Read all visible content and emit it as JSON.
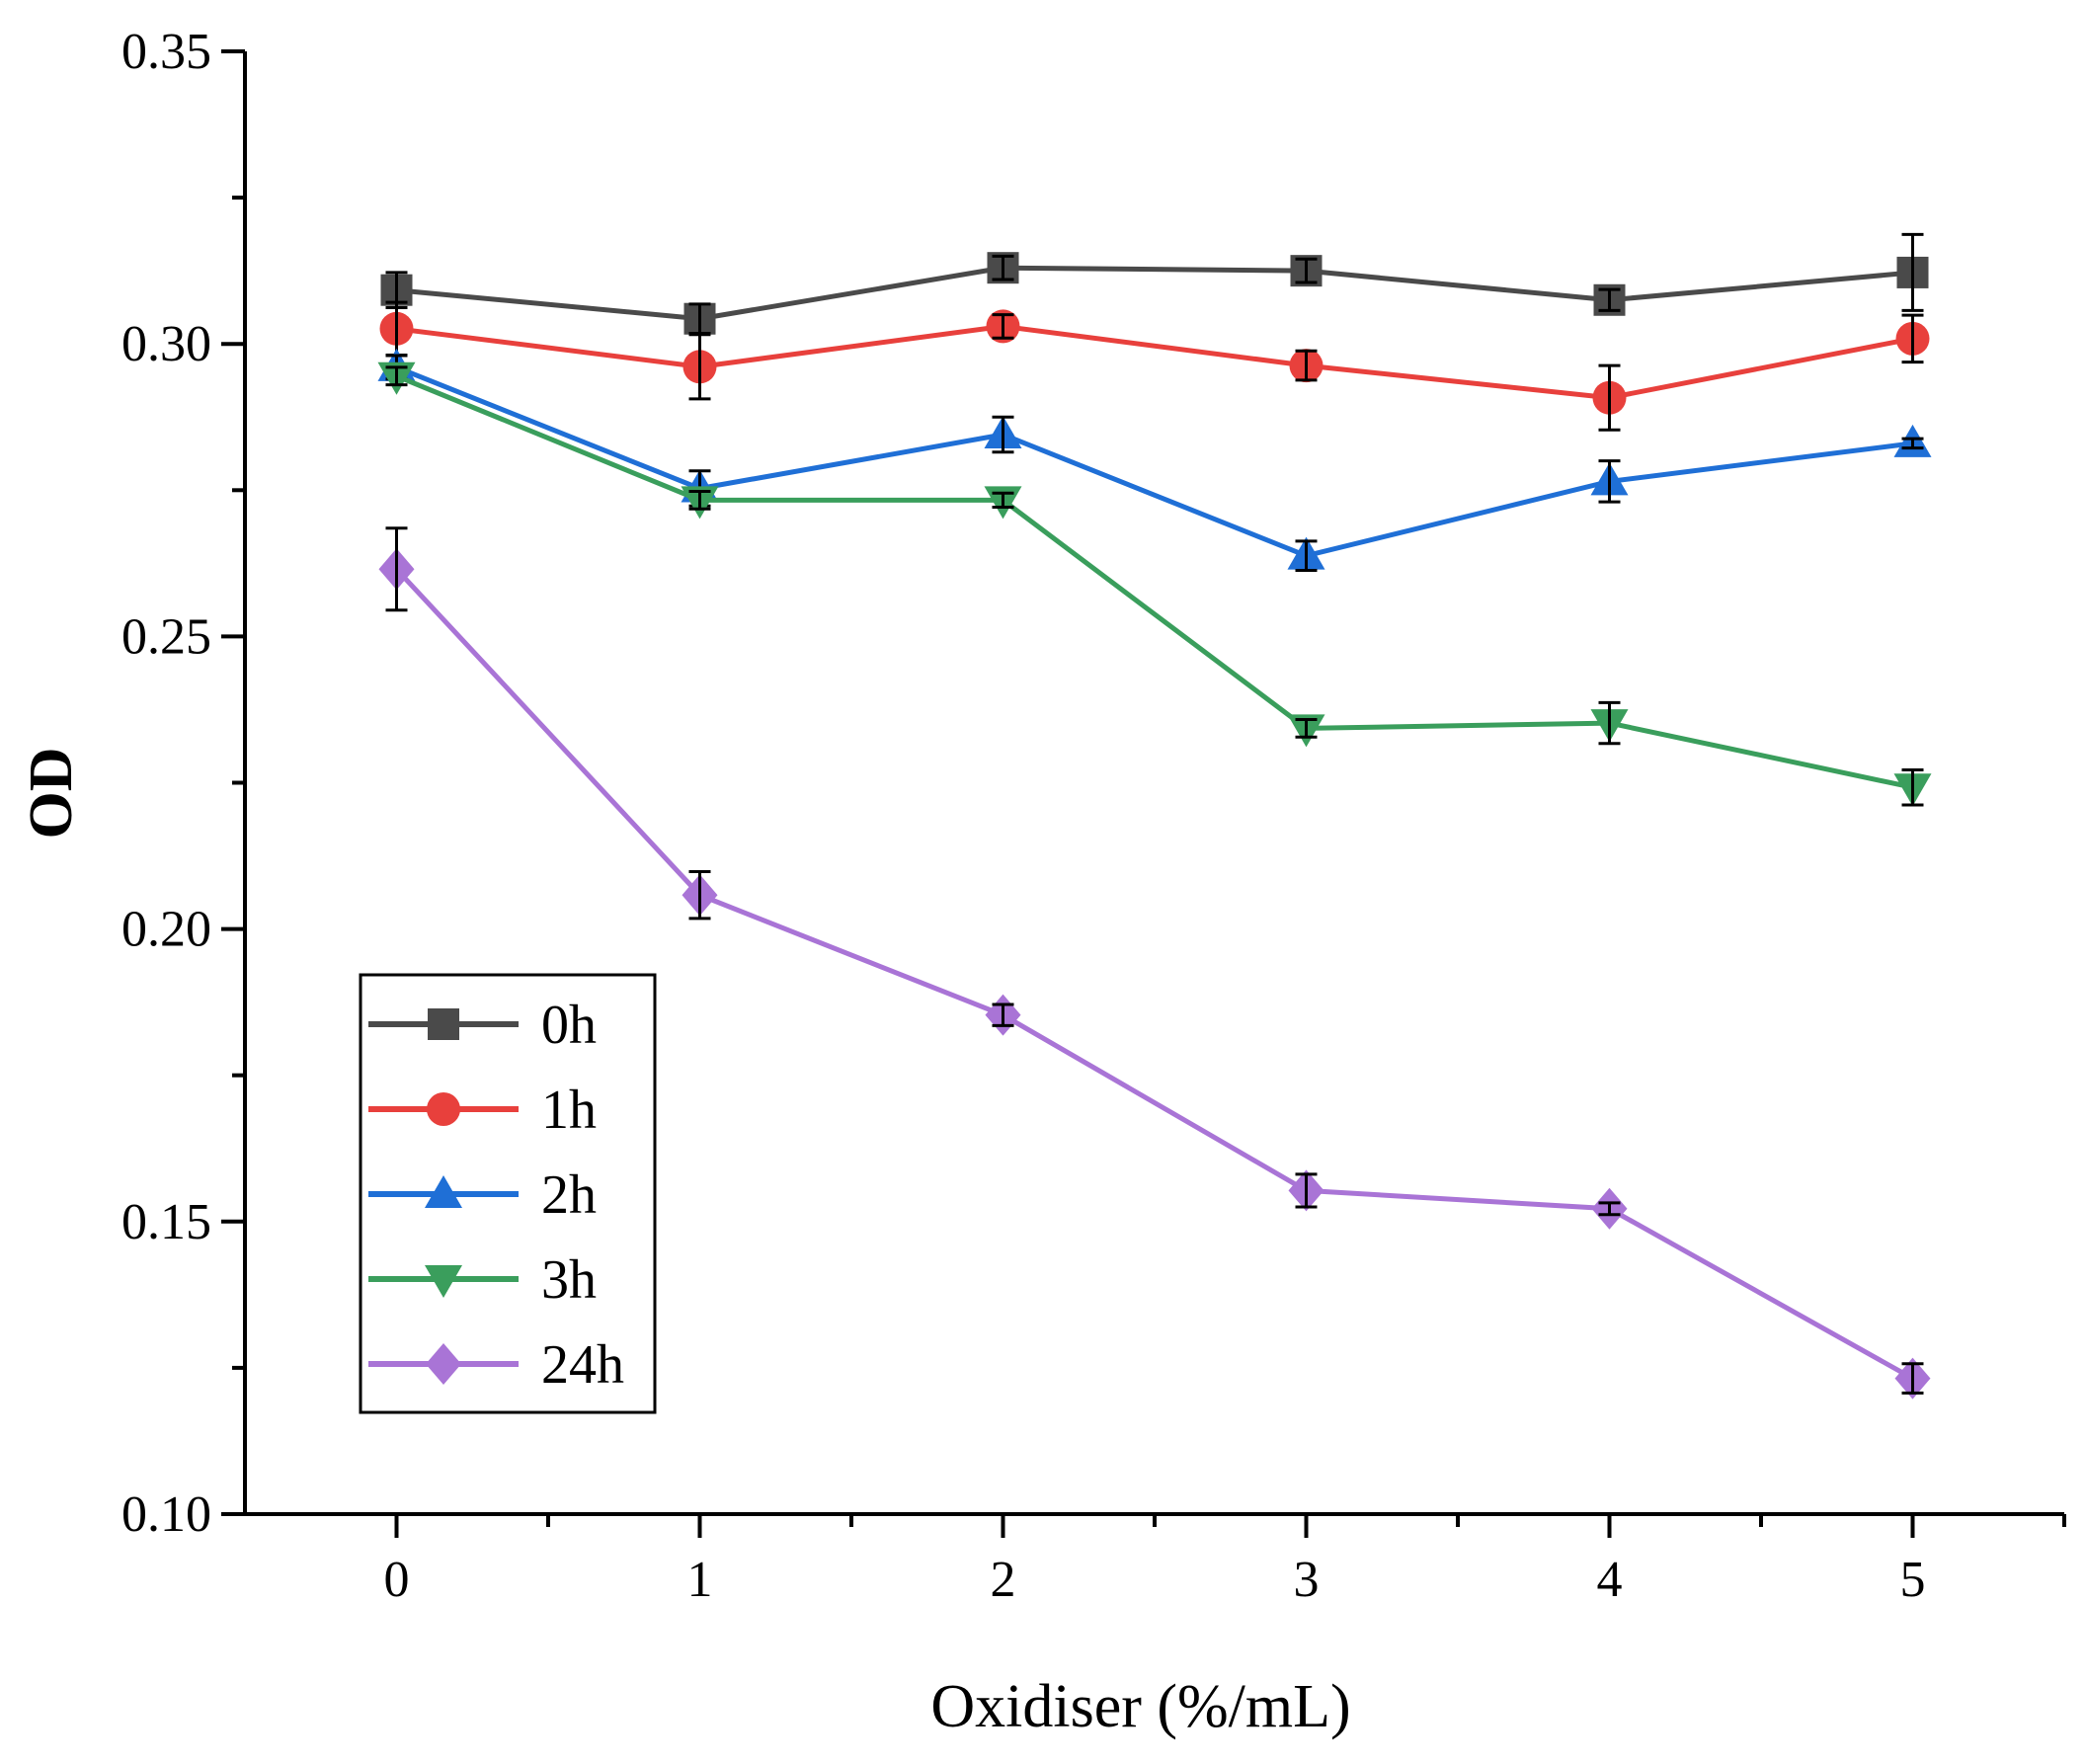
{
  "chart_data": {
    "type": "line",
    "title": "",
    "xlabel": "Oxidiser (%/mL)",
    "ylabel": "OD",
    "xlim": [
      -0.5,
      5.5
    ],
    "ylim": [
      0.1,
      0.35
    ],
    "x": [
      0,
      1,
      2,
      3,
      4,
      5
    ],
    "x_ticks": [
      "0",
      "1",
      "2",
      "3",
      "4",
      "5"
    ],
    "y_ticks": [
      "0.10",
      "0.15",
      "0.20",
      "0.25",
      "0.30",
      "0.35"
    ],
    "y_tick_values": [
      0.1,
      0.15,
      0.2,
      0.25,
      0.3,
      0.35
    ],
    "grid": false,
    "legend_position": "bottom-left",
    "series": [
      {
        "name": "0h",
        "color": "#4a4a4a",
        "marker": "square",
        "values": [
          0.3092,
          0.3043,
          0.313,
          0.3125,
          0.3075,
          0.3122
        ],
        "errors": [
          0.003,
          0.0025,
          0.002,
          0.002,
          0.0018,
          0.0065
        ]
      },
      {
        "name": "1h",
        "color": "#e8403c",
        "marker": "circle",
        "values": [
          0.3026,
          0.2961,
          0.303,
          0.2963,
          0.2908,
          0.3009
        ],
        "errors": [
          0.0045,
          0.0055,
          0.002,
          0.0025,
          0.0055,
          0.004
        ]
      },
      {
        "name": "2h",
        "color": "#1f6fd6",
        "marker": "triangle-up",
        "values": [
          0.296,
          0.2753,
          0.2845,
          0.2638,
          0.2765,
          0.283
        ],
        "errors": [
          0.002,
          0.003,
          0.003,
          0.0025,
          0.0035,
          0.0008
        ]
      },
      {
        "name": "3h",
        "color": "#3a9e5c",
        "marker": "triangle-down",
        "values": [
          0.2945,
          0.2733,
          0.2733,
          0.2343,
          0.2352,
          0.2242
        ],
        "errors": [
          0.0015,
          0.0015,
          0.0012,
          0.0015,
          0.0035,
          0.003
        ]
      },
      {
        "name": "24h",
        "color": "#a974d6",
        "marker": "diamond",
        "values": [
          0.2615,
          0.2058,
          0.1853,
          0.1553,
          0.1522,
          0.1232
        ],
        "errors": [
          0.007,
          0.004,
          0.0018,
          0.0028,
          0.001,
          0.0025
        ]
      }
    ]
  }
}
